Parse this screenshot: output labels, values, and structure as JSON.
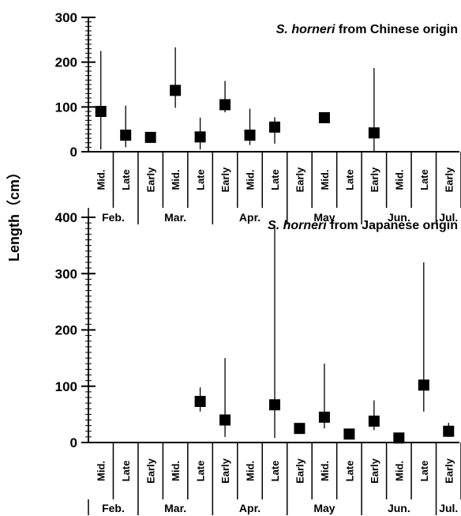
{
  "ylabel": "Length（cm）",
  "chart_data": [
    {
      "type": "scatter",
      "title_italic": "S. horneri",
      "title_rest": "from Chinese origin",
      "ylim": [
        0,
        300
      ],
      "yticks": [
        0,
        100,
        200,
        300
      ],
      "categories": [
        "Mid.",
        "Late",
        "Early",
        "Mid.",
        "Late",
        "Early",
        "Mid.",
        "Late",
        "Early",
        "Mid.",
        "Late",
        "Early",
        "Mid.",
        "Late",
        "Early"
      ],
      "months": [
        {
          "label": "Feb.",
          "start": 0,
          "end": 2
        },
        {
          "label": "Mar.",
          "start": 2,
          "end": 5
        },
        {
          "label": "Apr.",
          "start": 5,
          "end": 8
        },
        {
          "label": "May",
          "start": 8,
          "end": 11
        },
        {
          "label": "Jun.",
          "start": 11,
          "end": 14
        },
        {
          "label": "Jul.",
          "start": 14,
          "end": 15
        }
      ],
      "points": [
        {
          "cat": 0,
          "mean": 90,
          "low": 5,
          "high": 225
        },
        {
          "cat": 1,
          "mean": 37,
          "low": 10,
          "high": 103
        },
        {
          "cat": 2,
          "mean": 32,
          "low": 25,
          "high": 40
        },
        {
          "cat": 3,
          "mean": 137,
          "low": 98,
          "high": 233
        },
        {
          "cat": 4,
          "mean": 33,
          "low": 5,
          "high": 76
        },
        {
          "cat": 5,
          "mean": 105,
          "low": 88,
          "high": 158
        },
        {
          "cat": 6,
          "mean": 37,
          "low": 15,
          "high": 96
        },
        {
          "cat": 7,
          "mean": 55,
          "low": 18,
          "high": 77
        },
        {
          "cat": 9,
          "mean": 76,
          "low": 68,
          "high": 85
        },
        {
          "cat": 11,
          "mean": 42,
          "low": 0,
          "high": 187
        }
      ]
    },
    {
      "type": "scatter",
      "title_italic": "S. horneri",
      "title_rest": "from Japanese origin",
      "ylim": [
        0,
        450
      ],
      "yticks": [
        0,
        100,
        200,
        300,
        400
      ],
      "categories": [
        "Mid.",
        "Late",
        "Early",
        "Mid.",
        "Late",
        "Early",
        "Mid.",
        "Late",
        "Early",
        "Mid.",
        "Late",
        "Early",
        "Mid.",
        "Late",
        "Early"
      ],
      "months": [
        {
          "label": "Feb.",
          "start": 0,
          "end": 2
        },
        {
          "label": "Mar.",
          "start": 2,
          "end": 5
        },
        {
          "label": "Apr.",
          "start": 5,
          "end": 8
        },
        {
          "label": "May",
          "start": 8,
          "end": 11
        },
        {
          "label": "Jun.",
          "start": 11,
          "end": 14
        },
        {
          "label": "Jul.",
          "start": 14,
          "end": 15
        }
      ],
      "points": [
        {
          "cat": 4,
          "mean": 73,
          "low": 55,
          "high": 98
        },
        {
          "cat": 5,
          "mean": 40,
          "low": 10,
          "high": 150
        },
        {
          "cat": 7,
          "mean": 67,
          "low": 8,
          "high": 385
        },
        {
          "cat": 8,
          "mean": 25,
          "low": 18,
          "high": 35
        },
        {
          "cat": 9,
          "mean": 45,
          "low": 25,
          "high": 140
        },
        {
          "cat": 10,
          "mean": 15,
          "low": 8,
          "high": 20
        },
        {
          "cat": 11,
          "mean": 38,
          "low": 22,
          "high": 75
        },
        {
          "cat": 12,
          "mean": 8,
          "low": 2,
          "high": 12
        },
        {
          "cat": 13,
          "mean": 102,
          "low": 55,
          "high": 320
        },
        {
          "cat": 14,
          "mean": 20,
          "low": 10,
          "high": 35
        }
      ]
    }
  ]
}
